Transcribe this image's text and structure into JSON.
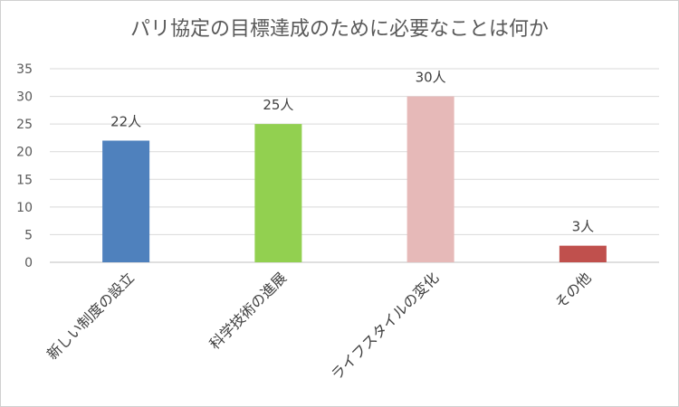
{
  "chart_data": {
    "type": "bar",
    "title": "パリ協定の目標達成のために必要なことは何か",
    "categories": [
      "新しい制度の設立",
      "科学技術の進展",
      "ライフスタイルの変化",
      "その他"
    ],
    "values": [
      22,
      25,
      30,
      3
    ],
    "value_labels": [
      "22人",
      "25人",
      "30人",
      "3人"
    ],
    "bar_colors": [
      "#4f81bd",
      "#92d050",
      "#e6b9b8",
      "#c0504d"
    ],
    "ylim": [
      0,
      35
    ],
    "yticks": [
      "0",
      "5",
      "10",
      "15",
      "20",
      "25",
      "30",
      "35"
    ],
    "grid": true,
    "xlabel": "",
    "ylabel": ""
  }
}
